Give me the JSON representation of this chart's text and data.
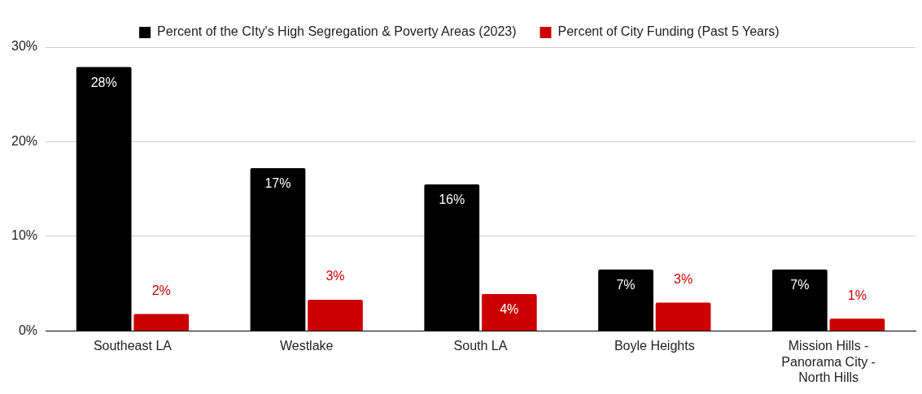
{
  "chart_data": {
    "type": "bar",
    "categories": [
      "Southeast LA",
      "Westlake",
      "South LA",
      "Boyle Heights",
      "Mission Hills - Panorama City - North Hills"
    ],
    "series": [
      {
        "name": "Percent of the CIty's High Segregation & Poverty Areas (2023)",
        "color": "#000000",
        "values": [
          27.9,
          17.2,
          15.5,
          6.5,
          6.5
        ],
        "value_labels": [
          "28%",
          "17%",
          "16%",
          "7%",
          "7%"
        ]
      },
      {
        "name": "Percent of City Funding (Past 5 Years)",
        "color": "#cc0000",
        "values": [
          1.8,
          3.3,
          3.9,
          3.0,
          1.3
        ],
        "value_labels": [
          "2%",
          "3%",
          "4%",
          "3%",
          "1%"
        ]
      }
    ],
    "ylim": [
      0,
      30
    ],
    "yticks": [
      {
        "value": 0,
        "label": "0%"
      },
      {
        "value": 10,
        "label": "10%"
      },
      {
        "value": 20,
        "label": "20%"
      },
      {
        "value": 30,
        "label": "30%"
      }
    ],
    "grid": "y",
    "legend": "top"
  }
}
